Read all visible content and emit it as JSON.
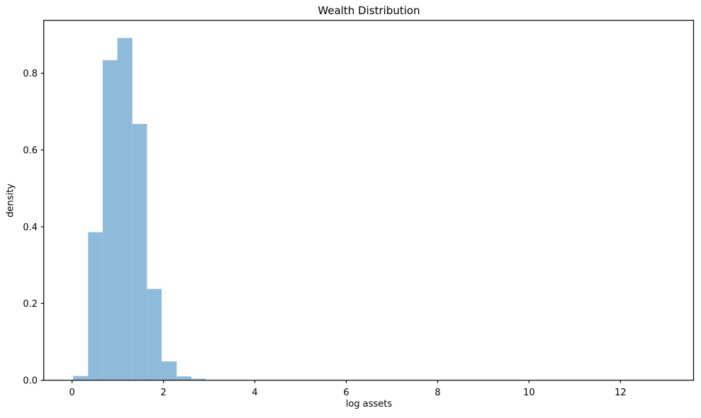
{
  "figure": {
    "background": "#ffffff"
  },
  "chart_data": {
    "type": "bar",
    "subtype": "histogram",
    "title": "Wealth Distribution",
    "xlabel": "log assets",
    "ylabel": "density",
    "bar_color": "#8fbbda",
    "axis_color": "#000000",
    "text_color": "#000000",
    "bin_edges": [
      0.02,
      0.35,
      0.67,
      0.99,
      1.32,
      1.64,
      1.96,
      2.29,
      2.61,
      2.93
    ],
    "densities": [
      0.011,
      0.386,
      0.834,
      0.892,
      0.668,
      0.238,
      0.049,
      0.01,
      0.004
    ],
    "xlim": [
      -0.62,
      13.6
    ],
    "ylim": [
      0,
      0.938
    ],
    "xticks": [
      0,
      2,
      4,
      6,
      8,
      10,
      12
    ],
    "xtick_labels": [
      "0",
      "2",
      "4",
      "6",
      "8",
      "10",
      "12"
    ],
    "yticks": [
      0.0,
      0.2,
      0.4,
      0.6,
      0.8
    ],
    "ytick_labels": [
      "0.0",
      "0.2",
      "0.4",
      "0.6",
      "0.8"
    ],
    "grid": false,
    "legend": "none"
  }
}
